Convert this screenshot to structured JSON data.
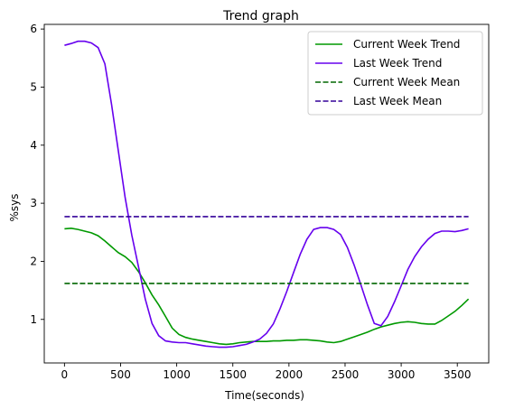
{
  "chart_data": {
    "type": "line",
    "title": "Trend graph",
    "xlabel": "Time(seconds)",
    "ylabel": "%sys",
    "xlim": [
      -180,
      3780
    ],
    "ylim": [
      0.25,
      6.08
    ],
    "xticks": [
      0,
      500,
      1000,
      1500,
      2000,
      2500,
      3000,
      3500
    ],
    "yticks": [
      1,
      2,
      3,
      4,
      5,
      6
    ],
    "grid": false,
    "legend_position": "top-right",
    "series": [
      {
        "name": "Current Week Trend",
        "style": "solid",
        "color": "#009900",
        "x": [
          0,
          60,
          120,
          180,
          240,
          300,
          360,
          420,
          480,
          540,
          600,
          660,
          720,
          780,
          840,
          900,
          960,
          1020,
          1080,
          1140,
          1200,
          1260,
          1320,
          1380,
          1440,
          1500,
          1560,
          1620,
          1680,
          1740,
          1800,
          1860,
          1920,
          1980,
          2040,
          2100,
          2160,
          2220,
          2280,
          2340,
          2400,
          2460,
          2520,
          2580,
          2640,
          2700,
          2760,
          2820,
          2880,
          2940,
          3000,
          3060,
          3120,
          3180,
          3240,
          3300,
          3360,
          3420,
          3480,
          3540,
          3600
        ],
        "values": [
          2.56,
          2.57,
          2.55,
          2.52,
          2.49,
          2.44,
          2.35,
          2.25,
          2.15,
          2.08,
          1.98,
          1.82,
          1.63,
          1.42,
          1.25,
          1.05,
          0.85,
          0.74,
          0.69,
          0.66,
          0.64,
          0.62,
          0.6,
          0.58,
          0.57,
          0.58,
          0.6,
          0.61,
          0.62,
          0.62,
          0.62,
          0.63,
          0.63,
          0.64,
          0.64,
          0.65,
          0.65,
          0.64,
          0.63,
          0.61,
          0.6,
          0.62,
          0.66,
          0.7,
          0.74,
          0.78,
          0.83,
          0.87,
          0.9,
          0.93,
          0.95,
          0.96,
          0.95,
          0.93,
          0.92,
          0.92,
          0.98,
          1.06,
          1.14,
          1.24,
          1.35
        ]
      },
      {
        "name": "Last Week Trend",
        "style": "solid",
        "color": "#6600ee",
        "x": [
          0,
          60,
          120,
          180,
          240,
          300,
          360,
          420,
          480,
          540,
          600,
          660,
          720,
          780,
          840,
          900,
          960,
          1020,
          1080,
          1140,
          1200,
          1260,
          1320,
          1380,
          1440,
          1500,
          1560,
          1620,
          1680,
          1740,
          1800,
          1860,
          1920,
          1980,
          2040,
          2100,
          2160,
          2220,
          2280,
          2340,
          2400,
          2460,
          2520,
          2580,
          2640,
          2700,
          2760,
          2820,
          2880,
          2940,
          3000,
          3060,
          3120,
          3180,
          3240,
          3300,
          3360,
          3420,
          3480,
          3540,
          3600
        ],
        "values": [
          5.72,
          5.75,
          5.79,
          5.79,
          5.76,
          5.68,
          5.4,
          4.7,
          3.9,
          3.1,
          2.45,
          1.9,
          1.35,
          0.93,
          0.72,
          0.63,
          0.61,
          0.6,
          0.6,
          0.58,
          0.56,
          0.54,
          0.53,
          0.52,
          0.52,
          0.53,
          0.55,
          0.57,
          0.61,
          0.66,
          0.76,
          0.92,
          1.18,
          1.48,
          1.8,
          2.12,
          2.38,
          2.55,
          2.58,
          2.58,
          2.55,
          2.46,
          2.24,
          1.94,
          1.6,
          1.25,
          0.93,
          0.89,
          1.05,
          1.3,
          1.58,
          1.86,
          2.08,
          2.25,
          2.38,
          2.48,
          2.52,
          2.52,
          2.51,
          2.53,
          2.56
        ]
      },
      {
        "name": "Current Week Mean",
        "style": "dashed",
        "color": "#006600",
        "x": [
          0,
          3600
        ],
        "values": [
          1.62,
          1.62
        ]
      },
      {
        "name": "Last Week Mean",
        "style": "dashed",
        "color": "#330099",
        "x": [
          0,
          3600
        ],
        "values": [
          2.77,
          2.77
        ]
      }
    ]
  }
}
